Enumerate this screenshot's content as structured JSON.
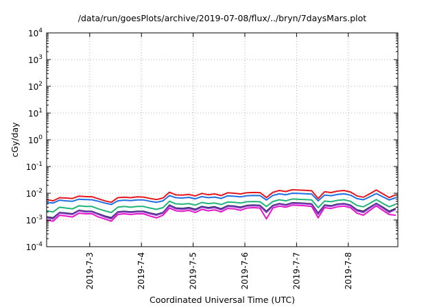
{
  "chart_data": {
    "type": "line",
    "title": "/data/run/goesPlots/archive/2019-07-08/flux/../bryn/7daysMars.plot",
    "xlabel": "Coordinated Universal Time (UTC)",
    "ylabel": "cGy/day",
    "y_scale": "log",
    "ylim": [
      0.0001,
      10000
    ],
    "xlim": [
      "2019-07-02 04:00",
      "2019-07-08 23:00"
    ],
    "grid": true,
    "legend": "none",
    "y_ticks": [
      {
        "base": "10",
        "exp": "-4"
      },
      {
        "base": "10",
        "exp": "-3"
      },
      {
        "base": "10",
        "exp": "-2"
      },
      {
        "base": "10",
        "exp": "-1"
      },
      {
        "base": "10",
        "exp": "0"
      },
      {
        "base": "10",
        "exp": "1"
      },
      {
        "base": "10",
        "exp": "2"
      },
      {
        "base": "10",
        "exp": "3"
      },
      {
        "base": "10",
        "exp": "4"
      }
    ],
    "x_ticks": [
      "2019-7-3",
      "2019-7-4",
      "2019-7-5",
      "2019-7-6",
      "2019-7-7",
      "2019-7-8"
    ],
    "x": [
      "2019-07-02 04:00",
      "2019-07-02 07:00",
      "2019-07-02 10:00",
      "2019-07-02 13:00",
      "2019-07-02 16:00",
      "2019-07-02 19:00",
      "2019-07-02 22:00",
      "2019-07-03 01:00",
      "2019-07-03 04:00",
      "2019-07-03 07:00",
      "2019-07-03 10:00",
      "2019-07-03 13:00",
      "2019-07-03 16:00",
      "2019-07-03 19:00",
      "2019-07-03 22:00",
      "2019-07-04 01:00",
      "2019-07-04 04:00",
      "2019-07-04 07:00",
      "2019-07-04 10:00",
      "2019-07-04 13:00",
      "2019-07-04 16:00",
      "2019-07-04 19:00",
      "2019-07-04 22:00",
      "2019-07-05 01:00",
      "2019-07-05 04:00",
      "2019-07-05 07:00",
      "2019-07-05 10:00",
      "2019-07-05 13:00",
      "2019-07-05 16:00",
      "2019-07-05 19:00",
      "2019-07-05 22:00",
      "2019-07-06 01:00",
      "2019-07-06 04:00",
      "2019-07-06 07:00",
      "2019-07-06 10:00",
      "2019-07-06 13:00",
      "2019-07-06 16:00",
      "2019-07-06 19:00",
      "2019-07-06 22:00",
      "2019-07-07 01:00",
      "2019-07-07 04:00",
      "2019-07-07 07:00",
      "2019-07-07 10:00",
      "2019-07-07 13:00",
      "2019-07-07 16:00",
      "2019-07-07 19:00",
      "2019-07-07 22:00",
      "2019-07-08 01:00",
      "2019-07-08 04:00",
      "2019-07-08 07:00",
      "2019-07-08 10:00",
      "2019-07-08 13:00",
      "2019-07-08 16:00",
      "2019-07-08 19:00",
      "2019-07-08 22:00"
    ],
    "series": [
      {
        "color": "#e8141c",
        "values": [
          0.0058,
          0.0052,
          0.0068,
          0.0066,
          0.0064,
          0.0078,
          0.0075,
          0.0074,
          0.0062,
          0.0052,
          0.0046,
          0.0068,
          0.0071,
          0.0068,
          0.0073,
          0.0072,
          0.0064,
          0.0058,
          0.0066,
          0.0109,
          0.0087,
          0.0085,
          0.009,
          0.0079,
          0.0098,
          0.0088,
          0.0094,
          0.0082,
          0.0104,
          0.01,
          0.0094,
          0.0105,
          0.0107,
          0.0106,
          0.0069,
          0.0108,
          0.0127,
          0.0116,
          0.0135,
          0.0131,
          0.0128,
          0.0124,
          0.0063,
          0.0114,
          0.0106,
          0.012,
          0.0127,
          0.0112,
          0.008,
          0.0071,
          0.0096,
          0.0132,
          0.0096,
          0.0069,
          0.0088
        ]
      },
      {
        "color": "#1e6ee6",
        "values": [
          0.0045,
          0.0043,
          0.0055,
          0.0052,
          0.005,
          0.006,
          0.0058,
          0.0057,
          0.005,
          0.0043,
          0.0038,
          0.0052,
          0.0055,
          0.0053,
          0.0056,
          0.0056,
          0.005,
          0.0046,
          0.0052,
          0.0082,
          0.0068,
          0.0066,
          0.007,
          0.0062,
          0.0075,
          0.0068,
          0.0072,
          0.0064,
          0.008,
          0.0077,
          0.0073,
          0.0081,
          0.0083,
          0.0082,
          0.0056,
          0.0083,
          0.0095,
          0.0088,
          0.01,
          0.0098,
          0.0096,
          0.0093,
          0.0052,
          0.0086,
          0.0081,
          0.009,
          0.0095,
          0.0085,
          0.0063,
          0.0057,
          0.0074,
          0.0097,
          0.0074,
          0.0056,
          0.0068
        ]
      },
      {
        "color": "#1eb478",
        "values": [
          0.0022,
          0.002,
          0.003,
          0.0028,
          0.0026,
          0.0034,
          0.0032,
          0.0032,
          0.0026,
          0.0022,
          0.0019,
          0.003,
          0.0032,
          0.003,
          0.0032,
          0.0032,
          0.0028,
          0.0025,
          0.0029,
          0.005,
          0.004,
          0.0039,
          0.0041,
          0.0036,
          0.0045,
          0.0041,
          0.0043,
          0.0038,
          0.0047,
          0.0046,
          0.0043,
          0.0048,
          0.0049,
          0.0048,
          0.0032,
          0.0049,
          0.0057,
          0.0052,
          0.0061,
          0.0059,
          0.0058,
          0.0056,
          0.0029,
          0.0051,
          0.0048,
          0.0054,
          0.0057,
          0.005,
          0.0035,
          0.0031,
          0.0042,
          0.0058,
          0.0042,
          0.0031,
          0.0039
        ]
      },
      {
        "color": "#1e2a50",
        "values": [
          0.0013,
          0.0012,
          0.0019,
          0.0018,
          0.0017,
          0.0023,
          0.0021,
          0.0021,
          0.0017,
          0.0014,
          0.0012,
          0.002,
          0.0021,
          0.002,
          0.0021,
          0.0021,
          0.0018,
          0.0016,
          0.0019,
          0.0036,
          0.0028,
          0.0027,
          0.0029,
          0.0025,
          0.0032,
          0.0029,
          0.0031,
          0.0026,
          0.0034,
          0.0033,
          0.003,
          0.0035,
          0.0036,
          0.0035,
          0.0021,
          0.0035,
          0.0041,
          0.0037,
          0.0044,
          0.0043,
          0.0042,
          0.004,
          0.0018,
          0.0036,
          0.0034,
          0.0039,
          0.0041,
          0.0036,
          0.0024,
          0.0021,
          0.003,
          0.0042,
          0.003,
          0.0021,
          0.0027
        ]
      },
      {
        "color": "#8c3cc8",
        "values": [
          0.0012,
          0.0011,
          0.0018,
          0.0017,
          0.0016,
          0.0022,
          0.002,
          0.002,
          0.0016,
          0.0013,
          0.0011,
          0.0019,
          0.002,
          0.0019,
          0.002,
          0.002,
          0.0017,
          0.0015,
          0.0018,
          0.0034,
          0.0026,
          0.0025,
          0.0027,
          0.0023,
          0.003,
          0.0027,
          0.0029,
          0.0024,
          0.0032,
          0.0031,
          0.0028,
          0.0033,
          0.0034,
          0.0033,
          0.0019,
          0.0033,
          0.0039,
          0.0035,
          0.0042,
          0.0041,
          0.004,
          0.0038,
          0.0016,
          0.0034,
          0.0032,
          0.0037,
          0.0039,
          0.0034,
          0.0022,
          0.0019,
          0.0028,
          0.004,
          0.0028,
          0.0019,
          0.0025
        ]
      },
      {
        "color": "#e614c8",
        "values": [
          0.001,
          0.0009,
          0.0015,
          0.0014,
          0.0013,
          0.0018,
          0.0017,
          0.0017,
          0.0013,
          0.0011,
          0.0009,
          0.0016,
          0.0017,
          0.0016,
          0.0017,
          0.0017,
          0.0014,
          0.0012,
          0.0015,
          0.0028,
          0.0022,
          0.0021,
          0.0023,
          0.0019,
          0.0025,
          0.0022,
          0.0024,
          0.002,
          0.0027,
          0.0026,
          0.0023,
          0.0028,
          0.0029,
          0.0028,
          0.0011,
          0.0028,
          0.0033,
          0.003,
          0.0036,
          0.0035,
          0.0034,
          0.0032,
          0.0012,
          0.0029,
          0.0027,
          0.0031,
          0.0033,
          0.0029,
          0.0018,
          0.0015,
          0.0023,
          0.0034,
          0.0023,
          0.0016,
          0.0015
        ]
      }
    ]
  }
}
